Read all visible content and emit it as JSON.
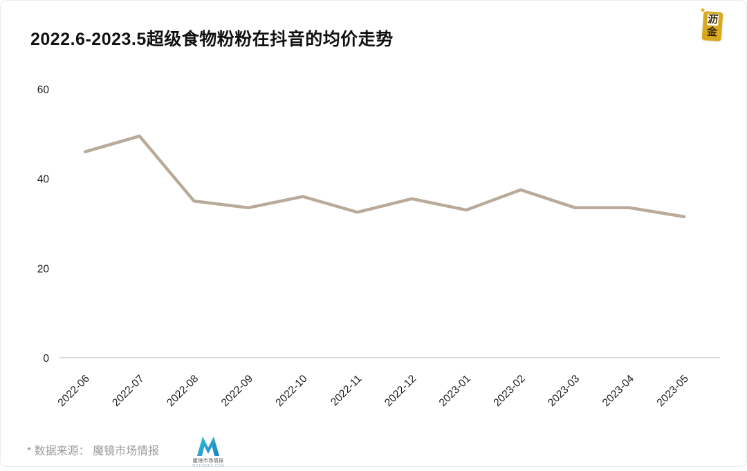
{
  "header": {
    "title": "2022.6-2023.5超级食物粉粉在抖音的均价走势",
    "brand_logo": {
      "line1": "沥",
      "line2": "金",
      "color": "#d9a91d",
      "spark_icon": "✦"
    }
  },
  "chart_data": {
    "type": "line",
    "title": "2022.6-2023.5超级食物粉粉在抖音的均价走势",
    "categories": [
      "2022-06",
      "2022-07",
      "2022-08",
      "2022-09",
      "2022-10",
      "2022-11",
      "2022-12",
      "2023-01",
      "2023-02",
      "2023-03",
      "2023-04",
      "2023-05"
    ],
    "values": [
      46,
      49.5,
      35,
      33.5,
      36,
      32.5,
      35.5,
      33,
      37.5,
      33.5,
      33.5,
      31.5
    ],
    "xlabel": "",
    "ylabel": "",
    "ylim": [
      0,
      60
    ],
    "yticks": [
      0,
      20,
      40,
      60
    ],
    "x_tick_rotation_deg": -45,
    "line_color": "#b9aa9a",
    "axis_color": "#c9c9c9",
    "grid": false,
    "legend": "none"
  },
  "footer": {
    "source_text": "* 数据来源： 魔镜市场情报",
    "logo": {
      "name": "魔镜市场情报",
      "subtext": "MKTINDEX.COM",
      "color_start": "#35c4d7",
      "color_end": "#1b7fc8"
    }
  }
}
